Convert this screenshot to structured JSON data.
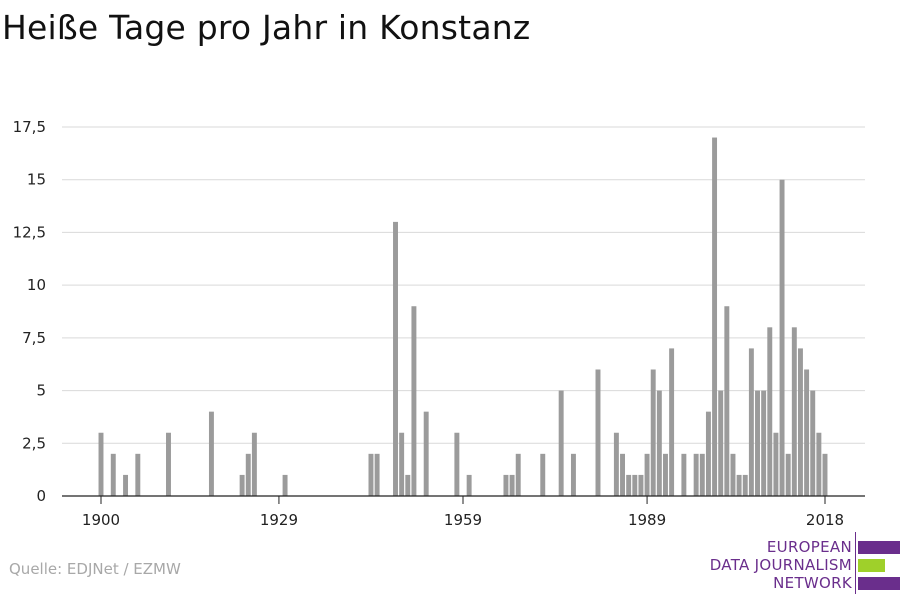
{
  "chart_data": {
    "type": "bar",
    "title": "Heiße Tage pro Jahr in Konstanz",
    "xlabel": "",
    "ylabel": "",
    "x_ticks": [
      1900,
      1929,
      1959,
      1989,
      2018
    ],
    "y_ticks": [
      "0",
      "2,5",
      "5",
      "7,5",
      "10",
      "12,5",
      "15",
      "17,5"
    ],
    "y_tick_values": [
      0,
      2.5,
      5,
      7.5,
      10,
      12.5,
      15,
      17.5
    ],
    "xlim": [
      1900,
      2018
    ],
    "ylim": [
      0,
      17.5
    ],
    "grid": true,
    "bar_color": "#9b9b9b",
    "years": [
      1900,
      1902,
      1904,
      1906,
      1911,
      1918,
      1923,
      1924,
      1925,
      1930,
      1944,
      1945,
      1948,
      1949,
      1950,
      1951,
      1953,
      1958,
      1960,
      1966,
      1967,
      1968,
      1972,
      1975,
      1977,
      1981,
      1984,
      1985,
      1986,
      1987,
      1988,
      1989,
      1990,
      1991,
      1992,
      1993,
      1995,
      1997,
      1998,
      1999,
      2000,
      2001,
      2002,
      2003,
      2004,
      2005,
      2006,
      2007,
      2008,
      2009,
      2010,
      2011,
      2012,
      2013,
      2014,
      2015,
      2016,
      2017,
      2018
    ],
    "values": [
      3,
      2,
      1,
      2,
      3,
      4,
      1,
      2,
      3,
      1,
      2,
      2,
      13,
      3,
      1,
      9,
      4,
      3,
      1,
      1,
      1,
      2,
      2,
      5,
      2,
      6,
      3,
      2,
      1,
      1,
      1,
      2,
      6,
      5,
      2,
      7,
      2,
      2,
      2,
      4,
      17,
      5,
      9,
      2,
      1,
      1,
      7,
      5,
      5,
      8,
      3,
      15,
      2,
      8,
      7,
      6,
      5,
      3,
      2
    ]
  },
  "source": "Quelle: EDJNet / EZMW",
  "logo": {
    "line1": "EUROPEAN",
    "line2": "DATA JOURNALISM",
    "line3": "NETWORK",
    "purple": "#6a2e8c",
    "green": "#9fd02a"
  }
}
